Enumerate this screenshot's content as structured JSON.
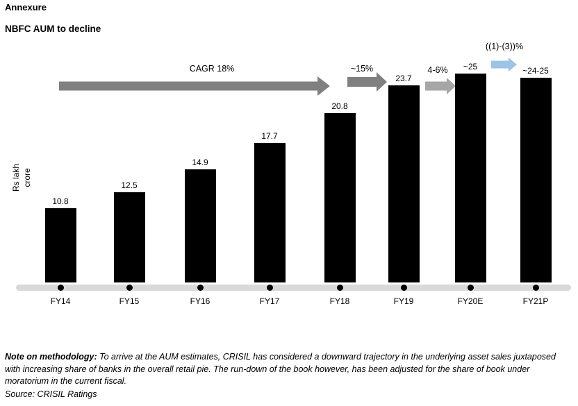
{
  "page": {
    "title": "Annexure",
    "subtitle": "NBFC AUM to decline"
  },
  "chart_data": {
    "type": "bar",
    "title": "NBFC AUM to decline",
    "ylabel": "Rs lakh crore",
    "ylabel_lines": [
      "Rs lakh",
      "crore"
    ],
    "xlabel": "",
    "categories": [
      "FY14",
      "FY15",
      "FY16",
      "FY17",
      "FY18",
      "FY19",
      "FY20E",
      "FY21P"
    ],
    "values": [
      10.8,
      12.5,
      14.9,
      17.7,
      20.8,
      23.7,
      25,
      24.5
    ],
    "value_labels": [
      "10.8",
      "12.5",
      "14.9",
      "17.7",
      "20.8",
      "23.7",
      "~25",
      "~24-25"
    ],
    "ylim": [
      3,
      26
    ],
    "grid": false,
    "legend": false,
    "bar_color": "#000000",
    "axis_line_color": "#d9d9d9",
    "axis_dot_color": "#000000",
    "annotations": [
      {
        "label": "CAGR 18%",
        "type": "arrow",
        "color": "#808080",
        "span": "FY14 to FY18"
      },
      {
        "label": "~15%",
        "type": "arrow",
        "color": "#808080",
        "span": "FY18 to FY19"
      },
      {
        "label": "4-6%",
        "type": "arrow",
        "color": "#a6a6a6",
        "span": "FY19 to FY20E"
      },
      {
        "label": "((1)-(3))%",
        "type": "arrow",
        "color": "#9dc3e6",
        "span": "FY20E to FY21P"
      }
    ]
  },
  "footnote": {
    "bold_label": "Note on methodology:",
    "text": "To arrive at the AUM estimates, CRISIL has considered a downward trajectory in the underlying asset sales juxtaposed with increasing share of banks in the overall retail pie. The run-down of the book however, has been adjusted for the share of book under moratorium in the current fiscal.",
    "source": "Source: CRISIL Ratings"
  }
}
